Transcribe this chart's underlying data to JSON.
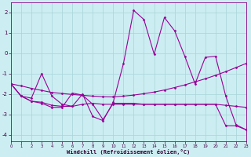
{
  "xlabel": "Windchill (Refroidissement éolien,°C)",
  "bg_color": "#cceef2",
  "grid_color": "#a8d4d8",
  "line_color": "#990099",
  "xlim": [
    0,
    23
  ],
  "ylim": [
    -4.3,
    2.5
  ],
  "xticks": [
    0,
    1,
    2,
    3,
    4,
    5,
    6,
    7,
    8,
    9,
    10,
    11,
    12,
    13,
    14,
    15,
    16,
    17,
    18,
    19,
    20,
    21,
    22,
    23
  ],
  "yticks": [
    -4,
    -3,
    -2,
    -1,
    0,
    1,
    2
  ],
  "series1": [
    -1.5,
    -2.1,
    -2.2,
    -1.0,
    -2.1,
    -2.5,
    -2.6,
    -2.0,
    -3.1,
    -3.3,
    -2.4,
    -0.5,
    2.1,
    1.65,
    -0.05,
    1.75,
    1.1,
    -0.15,
    -1.5,
    -0.2,
    -0.15,
    -2.1,
    -3.5,
    -3.75
  ],
  "series2": [
    -1.5,
    -2.1,
    -2.35,
    -2.4,
    -2.55,
    -2.6,
    -2.6,
    -2.5,
    -2.45,
    -2.5,
    -2.5,
    -2.5,
    -2.5,
    -2.5,
    -2.5,
    -2.5,
    -2.5,
    -2.5,
    -2.5,
    -2.5,
    -2.5,
    -2.55,
    -2.6,
    -2.65
  ],
  "series3": [
    -1.5,
    -1.6,
    -1.72,
    -1.82,
    -1.92,
    -1.97,
    -2.02,
    -2.06,
    -2.1,
    -2.13,
    -2.14,
    -2.1,
    -2.05,
    -1.98,
    -1.9,
    -1.8,
    -1.68,
    -1.55,
    -1.4,
    -1.25,
    -1.08,
    -0.9,
    -0.7,
    -0.5
  ],
  "series4": [
    -1.5,
    -2.1,
    -2.35,
    -2.45,
    -2.65,
    -2.65,
    -1.95,
    -2.05,
    -2.5,
    -3.25,
    -2.45,
    -2.45,
    -2.45,
    -2.5,
    -2.5,
    -2.5,
    -2.5,
    -2.5,
    -2.5,
    -2.5,
    -2.5,
    -3.55,
    -3.55,
    -3.75
  ]
}
